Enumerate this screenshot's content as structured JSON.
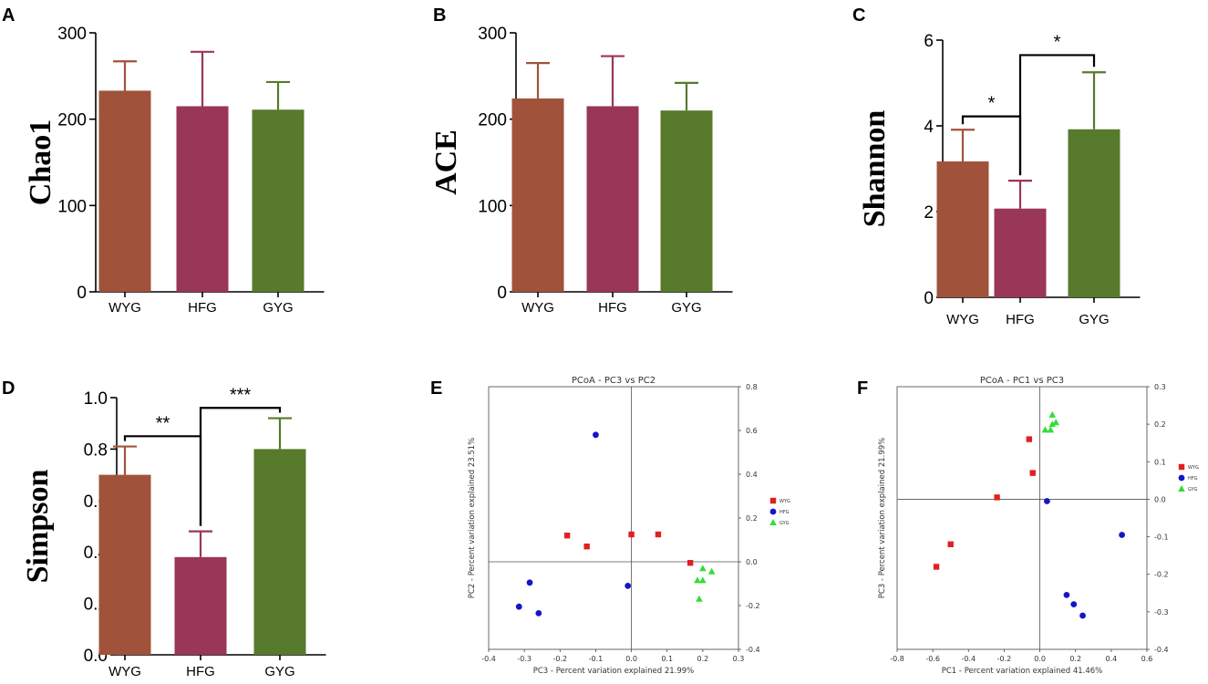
{
  "figure": {
    "type": "multi-panel"
  },
  "colors": {
    "WYG": "#A0533A",
    "HFG": "#9A3658",
    "GYG": "#577A2C",
    "pcoa_WYG": "#E02020",
    "pcoa_HFG": "#1515C8",
    "pcoa_GYG": "#33DD33"
  },
  "chart_data": [
    {
      "id": "A",
      "type": "bar",
      "panel_label": "A",
      "ylabel": "Chao1",
      "categories": [
        "WYG",
        "HFG",
        "GYG"
      ],
      "values": [
        233,
        215,
        211
      ],
      "errors": [
        34,
        63,
        32
      ],
      "ylim": [
        0,
        300
      ],
      "yticks": [
        0,
        100,
        200,
        300
      ],
      "significance": []
    },
    {
      "id": "B",
      "type": "bar",
      "panel_label": "B",
      "ylabel": "ACE",
      "categories": [
        "WYG",
        "HFG",
        "GYG"
      ],
      "values": [
        224,
        215,
        210
      ],
      "errors": [
        41,
        58,
        32
      ],
      "ylim": [
        0,
        300
      ],
      "yticks": [
        0,
        100,
        200,
        300
      ],
      "significance": []
    },
    {
      "id": "C",
      "type": "bar",
      "panel_label": "C",
      "ylabel": "Shannon",
      "categories": [
        "WYG",
        "HFG",
        "GYG"
      ],
      "values": [
        3.17,
        2.07,
        3.92
      ],
      "errors": [
        0.74,
        0.65,
        1.33
      ],
      "ylim": [
        0,
        6
      ],
      "yticks": [
        0,
        2,
        4,
        6
      ],
      "significance": [
        {
          "from": 0,
          "to": 1,
          "label": "*",
          "level": 4.22
        },
        {
          "from": 1,
          "to": 2,
          "label": "*",
          "level": 5.65
        }
      ]
    },
    {
      "id": "D",
      "type": "bar",
      "panel_label": "D",
      "ylabel": "Simpson",
      "categories": [
        "WYG",
        "HFG",
        "GYG"
      ],
      "values": [
        0.7,
        0.38,
        0.8
      ],
      "errors": [
        0.11,
        0.1,
        0.12
      ],
      "ylim": [
        0,
        1.0
      ],
      "yticks": [
        "0.0",
        "0.2",
        "0.4",
        "0.6",
        "0.8",
        "1.0"
      ],
      "significance": [
        {
          "from": 0,
          "to": 1,
          "label": "**",
          "level": 0.85
        },
        {
          "from": 1,
          "to": 2,
          "label": "***",
          "level": 0.96
        }
      ]
    },
    {
      "id": "E",
      "type": "scatter",
      "panel_label": "E",
      "title": "PCoA - PC3 vs PC2",
      "xlabel": "PC3 - Percent variation explained 21.99%",
      "ylabel": "PC2 - Percent variation explained 23.51%",
      "xlim": [
        -0.4,
        0.3
      ],
      "ylim": [
        -0.4,
        0.8
      ],
      "xticks": [
        "-0.4",
        "-0.3",
        "-0.2",
        "-0.1",
        "0.0",
        "0.1",
        "0.2",
        "0.3"
      ],
      "yticks": [
        "-0.4",
        "-0.2",
        "0.0",
        "0.2",
        "0.4",
        "0.6",
        "0.8"
      ],
      "legend_position": "right",
      "series": [
        {
          "name": "WYG",
          "marker": "square",
          "points": [
            [
              -0.18,
              0.12
            ],
            [
              -0.125,
              0.07
            ],
            [
              0.0,
              0.125
            ],
            [
              0.075,
              0.125
            ],
            [
              0.165,
              -0.005
            ]
          ]
        },
        {
          "name": "HFG",
          "marker": "circle",
          "points": [
            [
              -0.1,
              0.58
            ],
            [
              -0.285,
              -0.095
            ],
            [
              -0.315,
              -0.205
            ],
            [
              -0.26,
              -0.235
            ],
            [
              -0.01,
              -0.11
            ]
          ]
        },
        {
          "name": "GYG",
          "marker": "triangle",
          "points": [
            [
              0.2,
              -0.03
            ],
            [
              0.225,
              -0.045
            ],
            [
              0.185,
              -0.085
            ],
            [
              0.2,
              -0.085
            ],
            [
              0.19,
              -0.17
            ]
          ]
        }
      ]
    },
    {
      "id": "F",
      "type": "scatter",
      "panel_label": "F",
      "title": "PCoA - PC1 vs PC3",
      "xlabel": "PC1 - Percent variation explained 41.46%",
      "ylabel": "PC3 - Percent variation explained 21.99%",
      "xlim": [
        -0.8,
        0.6
      ],
      "ylim": [
        -0.4,
        0.3
      ],
      "xticks": [
        "-0.8",
        "-0.6",
        "-0.4",
        "-0.2",
        "0.0",
        "0.2",
        "0.4",
        "0.6"
      ],
      "yticks": [
        "-0.4",
        "-0.3",
        "-0.2",
        "-0.1",
        "0.0",
        "0.1",
        "0.2",
        "0.3"
      ],
      "legend_position": "right",
      "series": [
        {
          "name": "WYG",
          "marker": "square",
          "points": [
            [
              -0.06,
              0.16
            ],
            [
              -0.04,
              0.07
            ],
            [
              -0.24,
              0.005
            ],
            [
              -0.5,
              -0.12
            ],
            [
              -0.58,
              -0.18
            ]
          ]
        },
        {
          "name": "HFG",
          "marker": "circle",
          "points": [
            [
              0.04,
              -0.005
            ],
            [
              0.46,
              -0.095
            ],
            [
              0.15,
              -0.255
            ],
            [
              0.19,
              -0.28
            ],
            [
              0.24,
              -0.31
            ]
          ]
        },
        {
          "name": "GYG",
          "marker": "triangle",
          "points": [
            [
              0.07,
              0.225
            ],
            [
              0.03,
              0.185
            ],
            [
              0.09,
              0.205
            ],
            [
              0.06,
              0.185
            ],
            [
              0.07,
              0.2
            ]
          ]
        }
      ]
    }
  ]
}
